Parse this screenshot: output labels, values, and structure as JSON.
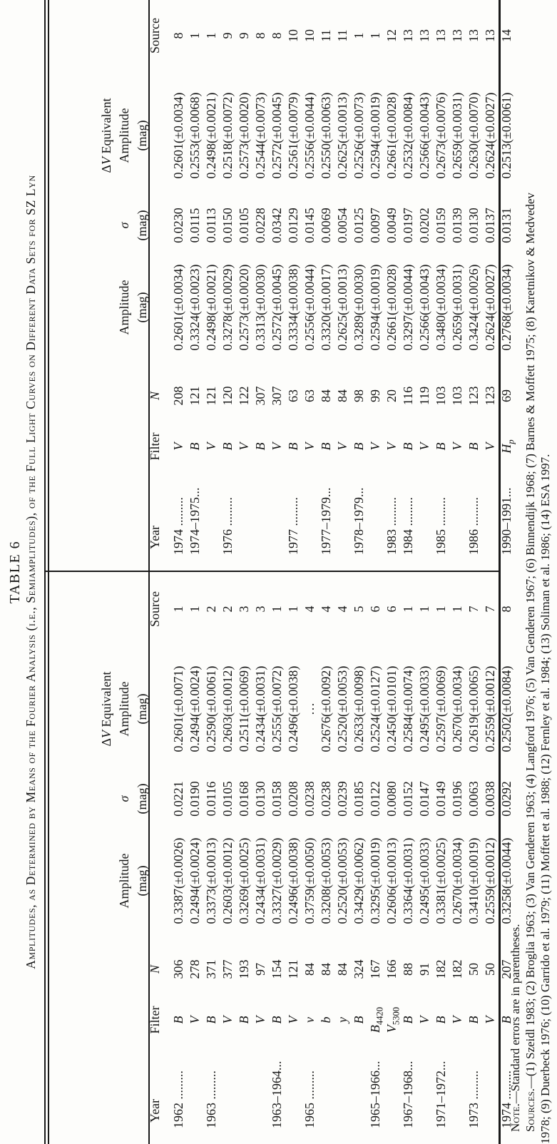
{
  "title": "TABLE 6",
  "caption": "Amplitudes, as Determined by Means of the Fourier Analysis (i.e., Semiamplitudes), of the Full Light Curves on Different Data Sets for SZ Lyn",
  "headers": {
    "year": "Year",
    "filter": "Filter",
    "n": "N",
    "amplitude_line1": "Amplitude",
    "amplitude_line2": "(mag)",
    "sigma_line1": "σ",
    "sigma_line2": "(mag)",
    "dv_delta": "Δ",
    "dv_v": "V",
    "dv_rest": " Equivalent",
    "dv_line2": "Amplitude",
    "dv_line3": "(mag)",
    "source": "Source"
  },
  "left_rows": [
    [
      "1962 .........",
      "B",
      "306",
      "0.3387(±0.0026)",
      "0.0221",
      "0.2601(±0.0071)",
      "1"
    ],
    [
      "",
      "V",
      "278",
      "0.2494(±0.0024)",
      "0.0190",
      "0.2494(±0.0024)",
      "1"
    ],
    [
      "1963 .........",
      "B",
      "371",
      "0.3373(±0.0013)",
      "0.0116",
      "0.2590(±0.0061)",
      "2"
    ],
    [
      "",
      "V",
      "377",
      "0.2603(±0.0012)",
      "0.0105",
      "0.2603(±0.0012)",
      "2"
    ],
    [
      "",
      "B",
      "193",
      "0.3269(±0.0025)",
      "0.0168",
      "0.2511(±0.0069)",
      "3"
    ],
    [
      "",
      "V",
      "97",
      "0.2434(±0.0031)",
      "0.0130",
      "0.2434(±0.0031)",
      "3"
    ],
    [
      "1963–1964...",
      "B",
      "154",
      "0.3327(±0.0029)",
      "0.0158",
      "0.2555(±0.0072)",
      "1"
    ],
    [
      "",
      "V",
      "121",
      "0.2496(±0.0038)",
      "0.0208",
      "0.2496(±0.0038)",
      "1"
    ],
    [
      "1965 .........",
      "v",
      "84",
      "0.3759(±0.0050)",
      "0.0238",
      "…",
      "4"
    ],
    [
      "",
      "b",
      "84",
      "0.3208(±0.0053)",
      "0.0238",
      "0.2676(±0.0092)",
      "4"
    ],
    [
      "",
      "y",
      "84",
      "0.2520(±0.0053)",
      "0.0239",
      "0.2520(±0.0053)",
      "4"
    ],
    [
      "",
      "B",
      "324",
      "0.3429(±0.0062)",
      "0.0185",
      "0.2633(±0.0098)",
      "5"
    ],
    [
      "1965–1966...",
      "B|4420",
      "167",
      "0.3295(±0.0019)",
      "0.0122",
      "0.2524(±0.0127)",
      "6"
    ],
    [
      "",
      "V|5300",
      "166",
      "0.2606(±0.0013)",
      "0.0080",
      "0.2450(±0.0101)",
      "6"
    ],
    [
      "1967–1968...",
      "B",
      "88",
      "0.3364(±0.0031)",
      "0.0152",
      "0.2584(±0.0074)",
      "1"
    ],
    [
      "",
      "V",
      "91",
      "0.2495(±0.0033)",
      "0.0147",
      "0.2495(±0.0033)",
      "1"
    ],
    [
      "1971–1972...",
      "B",
      "182",
      "0.3381(±0.0025)",
      "0.0149",
      "0.2597(±0.0069)",
      "1"
    ],
    [
      "",
      "V",
      "182",
      "0.2670(±0.0034)",
      "0.0196",
      "0.2670(±0.0034)",
      "1"
    ],
    [
      "1973 .........",
      "B",
      "50",
      "0.3410(±0.0019)",
      "0.0063",
      "0.2619(±0.0065)",
      "7"
    ],
    [
      "",
      "V",
      "50",
      "0.2559(±0.0012)",
      "0.0038",
      "0.2559(±0.0012)",
      "7"
    ],
    [
      "1974 .........",
      "B",
      "207",
      "0.3258(±0.0044)",
      "0.0292",
      "0.2502(±0.0084)",
      "8"
    ]
  ],
  "right_rows": [
    [
      "1974 .........",
      "V",
      "208",
      "0.2601(±0.0034)",
      "0.0230",
      "0.2601(±0.0034)",
      "8"
    ],
    [
      "1974–1975...",
      "B",
      "121",
      "0.3324(±0.0023)",
      "0.0115",
      "0.2553(±0.0068)",
      "1"
    ],
    [
      "",
      "V",
      "121",
      "0.2498(±0.0021)",
      "0.0113",
      "0.2498(±0.0021)",
      "1"
    ],
    [
      "1976 .........",
      "B",
      "120",
      "0.3278(±0.0029)",
      "0.0150",
      "0.2518(±0.0072)",
      "9"
    ],
    [
      "",
      "V",
      "122",
      "0.2573(±0.0020)",
      "0.0105",
      "0.2573(±0.0020)",
      "9"
    ],
    [
      "",
      "B",
      "307",
      "0.3313(±0.0030)",
      "0.0228",
      "0.2544(±0.0073)",
      "8"
    ],
    [
      "",
      "V",
      "307",
      "0.2572(±0.0045)",
      "0.0342",
      "0.2572(±0.0045)",
      "8"
    ],
    [
      "1977 .........",
      "B",
      "63",
      "0.3334(±0.0038)",
      "0.0129",
      "0.2561(±0.0079)",
      "10"
    ],
    [
      "",
      "V",
      "63",
      "0.2556(±0.0044)",
      "0.0145",
      "0.2556(±0.0044)",
      "10"
    ],
    [
      "1977–1979...",
      "B",
      "84",
      "0.3320(±0.0017)",
      "0.0069",
      "0.2550(±0.0063)",
      "11"
    ],
    [
      "",
      "V",
      "84",
      "0.2625(±0.0013)",
      "0.0054",
      "0.2625(±0.0013)",
      "11"
    ],
    [
      "1978–1979...",
      "B",
      "98",
      "0.3289(±0.0030)",
      "0.0125",
      "0.2526(±0.0073)",
      "1"
    ],
    [
      "",
      "V",
      "99",
      "0.2594(±0.0019)",
      "0.0097",
      "0.2594(±0.0019)",
      "1"
    ],
    [
      "1983 .........",
      "V",
      "20",
      "0.2661(±0.0028)",
      "0.0049",
      "0.2661(±0.0028)",
      "12"
    ],
    [
      "1984 .........",
      "B",
      "116",
      "0.3297(±0.0044)",
      "0.0197",
      "0.2532(±0.0084)",
      "13"
    ],
    [
      "",
      "V",
      "119",
      "0.2566(±0.0043)",
      "0.0202",
      "0.2566(±0.0043)",
      "13"
    ],
    [
      "1985 .........",
      "B",
      "103",
      "0.3480(±0.0034)",
      "0.0159",
      "0.2673(±0.0076)",
      "13"
    ],
    [
      "",
      "V",
      "103",
      "0.2659(±0.0031)",
      "0.0139",
      "0.2659(±0.0031)",
      "13"
    ],
    [
      "1986 .........",
      "B",
      "123",
      "0.3424(±0.0026)",
      "0.0130",
      "0.2630(±0.0070)",
      "13"
    ],
    [
      "",
      "V",
      "123",
      "0.2624(±0.0027)",
      "0.0137",
      "0.2624(±0.0027)",
      "13"
    ],
    [
      "1990–1991...",
      "H|p",
      "69",
      "0.2768(±0.0034)",
      "0.0131",
      "0.2513(±0.0061)",
      "14"
    ]
  ],
  "notes": {
    "note_label": "Note.",
    "note_text": "—Standard errors are in parentheses.",
    "sources_label": "Sources.",
    "sources_line1": "—(1) Szeidl 1983; (2) Broglia 1963; (3) Van Genderen 1963; (4) Langford 1976; (5) Van Genderen 1967; (6) Binnendijk 1968; (7) Barnes & Moffett 1975; (8) Karetnikov & Medvedev",
    "sources_line2": "1978; (9) Duerbeck 1976; (10) Garrido et al. 1979; (11) Moffett et al. 1988; (12) Fernley et al. 1984; (13) Soliman et al. 1986; (14) ESA 1997."
  }
}
